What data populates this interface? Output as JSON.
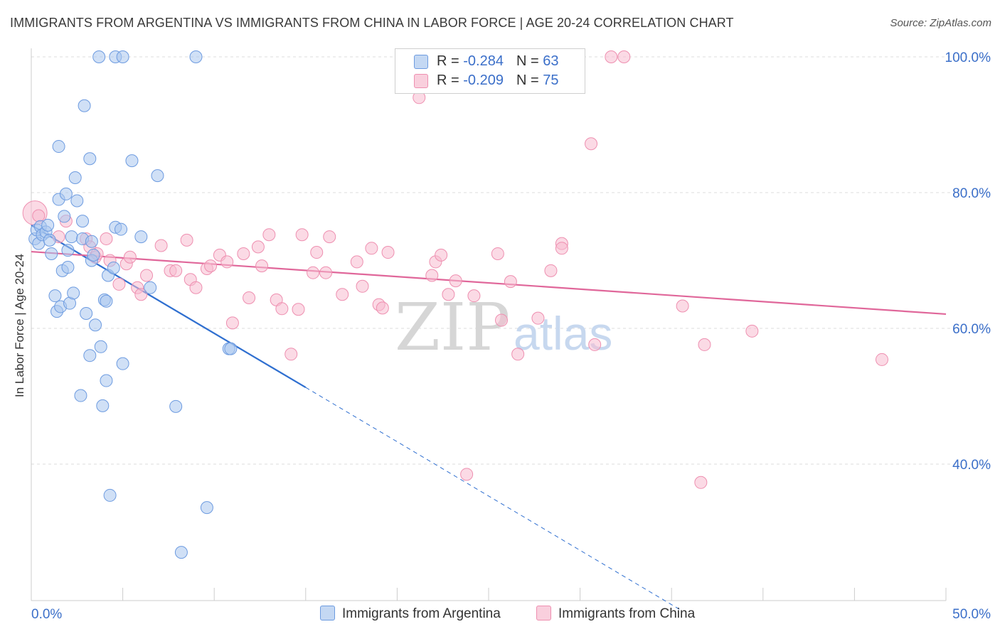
{
  "header": {
    "title": "IMMIGRANTS FROM ARGENTINA VS IMMIGRANTS FROM CHINA IN LABOR FORCE | AGE 20-24 CORRELATION CHART",
    "source": "Source: ZipAtlas.com"
  },
  "legend": {
    "argentina": {
      "r_label": "R = ",
      "r_value": "-0.284",
      "n_label": "N = ",
      "n_value": "63"
    },
    "china": {
      "r_label": "R = ",
      "r_value": "-0.209",
      "n_label": "N = ",
      "n_value": "75"
    }
  },
  "watermark": {
    "zip": "ZIP",
    "atlas": "atlas"
  },
  "colors": {
    "argentina_fill": "#a9c6ef",
    "argentina_stroke": "#6d9be0",
    "argentina_line": "#2f6fd0",
    "china_fill": "#f7bcd0",
    "china_stroke": "#ee8fb0",
    "china_line": "#e0679a",
    "axis_text": "#3b6fc9",
    "grid": "#dedede"
  },
  "chart_data": {
    "type": "scatter",
    "title": "IMMIGRANTS FROM ARGENTINA VS IMMIGRANTS FROM CHINA IN LABOR FORCE | AGE 20-24 CORRELATION CHART",
    "xlabel": "",
    "ylabel": "In Labor Force | Age 20-24",
    "xlim": [
      0,
      50
    ],
    "ylim": [
      20,
      102
    ],
    "x_tick_labels": [
      "0.0%",
      "50.0%"
    ],
    "y_ticks": [
      40,
      60,
      80,
      100
    ],
    "y_tick_labels": [
      "40.0%",
      "60.0%",
      "80.0%",
      "100.0%"
    ],
    "grid": true,
    "legend_position": "bottom",
    "series": [
      {
        "name": "Immigrants from Argentina",
        "color": "#a9c6ef",
        "points": [
          [
            0.2,
            73.2
          ],
          [
            0.3,
            74.5
          ],
          [
            0.4,
            72.5
          ],
          [
            0.5,
            75.0
          ],
          [
            0.6,
            73.8
          ],
          [
            0.8,
            74.2
          ],
          [
            0.9,
            75.2
          ],
          [
            1.0,
            73.0
          ],
          [
            1.1,
            71.0
          ],
          [
            1.3,
            64.8
          ],
          [
            1.4,
            62.5
          ],
          [
            1.5,
            86.8
          ],
          [
            1.5,
            79.0
          ],
          [
            1.6,
            63.2
          ],
          [
            1.7,
            68.5
          ],
          [
            1.8,
            76.5
          ],
          [
            1.9,
            79.8
          ],
          [
            2.0,
            71.5
          ],
          [
            2.0,
            69.0
          ],
          [
            2.1,
            63.7
          ],
          [
            2.2,
            73.5
          ],
          [
            2.3,
            65.2
          ],
          [
            2.4,
            82.2
          ],
          [
            2.5,
            78.8
          ],
          [
            2.7,
            50.1
          ],
          [
            2.8,
            75.8
          ],
          [
            2.8,
            73.2
          ],
          [
            2.9,
            92.8
          ],
          [
            3.0,
            62.2
          ],
          [
            3.2,
            85.0
          ],
          [
            3.2,
            56.0
          ],
          [
            3.3,
            72.8
          ],
          [
            3.3,
            70.0
          ],
          [
            3.4,
            70.8
          ],
          [
            3.5,
            60.5
          ],
          [
            3.7,
            100.0
          ],
          [
            3.8,
            57.3
          ],
          [
            3.9,
            48.6
          ],
          [
            4.0,
            64.2
          ],
          [
            4.1,
            52.3
          ],
          [
            4.1,
            64.0
          ],
          [
            4.2,
            67.8
          ],
          [
            4.3,
            35.4
          ],
          [
            4.5,
            68.9
          ],
          [
            4.6,
            100.0
          ],
          [
            4.6,
            74.9
          ],
          [
            4.9,
            74.6
          ],
          [
            5.0,
            54.8
          ],
          [
            5.0,
            100.0
          ],
          [
            5.5,
            84.7
          ],
          [
            6.0,
            73.5
          ],
          [
            6.5,
            66.0
          ],
          [
            6.9,
            82.5
          ],
          [
            7.9,
            48.5
          ],
          [
            8.2,
            27.0
          ],
          [
            9.0,
            100.0
          ],
          [
            9.6,
            33.6
          ],
          [
            10.8,
            57.0
          ],
          [
            10.9,
            57.0
          ]
        ]
      },
      {
        "name": "Immigrants from China",
        "color": "#f7bcd0",
        "points": [
          [
            0.2,
            77.0
          ],
          [
            0.4,
            76.6
          ],
          [
            1.5,
            73.5
          ],
          [
            1.9,
            75.8
          ],
          [
            3.0,
            73.2
          ],
          [
            3.2,
            72.0
          ],
          [
            3.5,
            70.5
          ],
          [
            3.6,
            71.0
          ],
          [
            4.1,
            73.2
          ],
          [
            4.3,
            70.0
          ],
          [
            4.8,
            66.5
          ],
          [
            5.2,
            69.5
          ],
          [
            5.4,
            70.5
          ],
          [
            5.8,
            66.0
          ],
          [
            6.0,
            65.0
          ],
          [
            6.3,
            67.8
          ],
          [
            7.1,
            72.2
          ],
          [
            7.6,
            68.5
          ],
          [
            7.9,
            68.5
          ],
          [
            8.5,
            73.0
          ],
          [
            8.7,
            67.2
          ],
          [
            9.0,
            66.0
          ],
          [
            9.6,
            68.8
          ],
          [
            9.8,
            69.2
          ],
          [
            10.3,
            70.8
          ],
          [
            10.7,
            69.8
          ],
          [
            11.0,
            60.8
          ],
          [
            11.6,
            71.0
          ],
          [
            11.9,
            64.5
          ],
          [
            12.4,
            72.0
          ],
          [
            12.6,
            69.2
          ],
          [
            13.0,
            73.8
          ],
          [
            13.4,
            64.2
          ],
          [
            13.7,
            62.9
          ],
          [
            14.2,
            56.2
          ],
          [
            14.6,
            62.8
          ],
          [
            14.8,
            73.8
          ],
          [
            15.4,
            68.2
          ],
          [
            15.6,
            71.2
          ],
          [
            16.1,
            68.2
          ],
          [
            16.3,
            73.5
          ],
          [
            17.0,
            65.0
          ],
          [
            17.8,
            69.8
          ],
          [
            18.1,
            66.2
          ],
          [
            18.6,
            71.8
          ],
          [
            19.0,
            63.5
          ],
          [
            19.2,
            63.0
          ],
          [
            19.5,
            71.2
          ],
          [
            21.2,
            94.0
          ],
          [
            21.9,
            67.8
          ],
          [
            22.1,
            69.8
          ],
          [
            22.4,
            70.8
          ],
          [
            22.8,
            65.0
          ],
          [
            23.2,
            67.0
          ],
          [
            23.8,
            38.5
          ],
          [
            24.2,
            64.8
          ],
          [
            25.5,
            71.0
          ],
          [
            25.7,
            61.2
          ],
          [
            26.2,
            66.9
          ],
          [
            26.6,
            56.2
          ],
          [
            27.7,
            61.5
          ],
          [
            28.4,
            68.5
          ],
          [
            29.0,
            72.5
          ],
          [
            29.0,
            71.8
          ],
          [
            30.6,
            87.2
          ],
          [
            30.8,
            57.6
          ],
          [
            31.7,
            100.0
          ],
          [
            32.4,
            100.0
          ],
          [
            35.6,
            63.3
          ],
          [
            36.6,
            37.3
          ],
          [
            36.8,
            57.6
          ],
          [
            39.4,
            59.6
          ],
          [
            46.5,
            55.4
          ]
        ]
      }
    ],
    "trend_lines": [
      {
        "series": "Immigrants from Argentina",
        "x": [
          0,
          15
        ],
        "y": [
          75.2,
          51.3
        ],
        "dashed_extension_to": [
          35.5,
          18.5
        ]
      },
      {
        "series": "Immigrants from China",
        "x": [
          0,
          50
        ],
        "y": [
          71.3,
          62.1
        ]
      }
    ]
  },
  "bottom_legend": {
    "argentina_label": "Immigrants from Argentina",
    "china_label": "Immigrants from China"
  }
}
